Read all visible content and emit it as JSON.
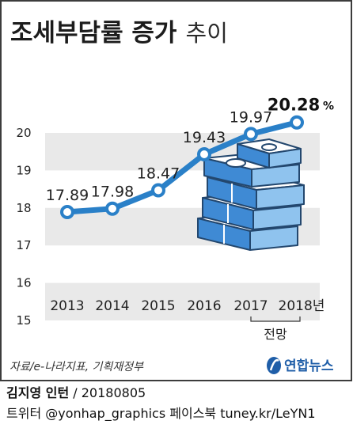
{
  "title": {
    "main": "조세부담률 증가",
    "sub": "추이"
  },
  "chart_data": {
    "type": "line",
    "title": "조세부담률 증가 추이",
    "categories": [
      "2013",
      "2014",
      "2015",
      "2016",
      "2017",
      "2018년"
    ],
    "values": [
      17.89,
      17.98,
      18.47,
      19.43,
      19.97,
      20.28
    ],
    "value_labels": [
      "17.89",
      "17.98",
      "18.47",
      "19.43",
      "19.97",
      "20.28"
    ],
    "last_unit": "%",
    "yticks": [
      15,
      16,
      17,
      18,
      19,
      20
    ],
    "ylim": [
      15,
      20.6
    ],
    "grid": "alternating bands",
    "line_color": "#2a80c8",
    "band_color": "#e9e9e9",
    "forecast_label": "전망"
  },
  "source": "자료/e-나라지표, 기획재정부",
  "logo": {
    "text": "연합뉴스",
    "color": "#1f5ea8"
  },
  "credit": {
    "author": "김지영 인턴",
    "date": " / 20180805",
    "social": "트위터 @yonhap_graphics 페이스북 tuney.kr/LeYN1"
  }
}
